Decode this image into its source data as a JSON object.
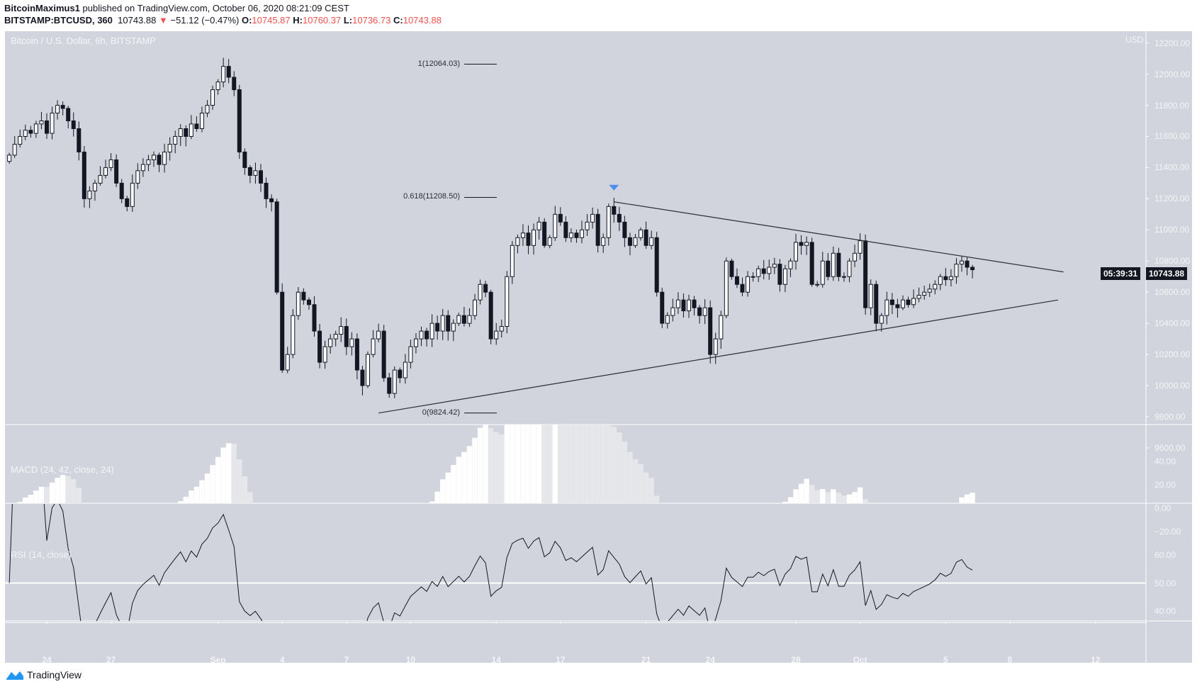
{
  "header": {
    "author": "BitcoinMaximus1",
    "published": "published on TradingView.com, October 06, 2020 08:21:09 CEST",
    "symbol": "BITSTAMP:BTCUSD, 360",
    "last": "10743.88",
    "change": "−51.12 (−0.47%)",
    "o_label": "O:",
    "o": "10745.87",
    "h_label": "H:",
    "h": "10760.37",
    "l_label": "L:",
    "l": "10736.73",
    "c_label": "C:",
    "c": "10743.88",
    "down_color": "#ef5350"
  },
  "chart": {
    "title": "Bitcoin / U.S. Dollar, 6h, BITSTAMP",
    "currency": "USD",
    "current_price": "10743.88",
    "countdown": "05:39:31",
    "background": "#d1d4dc",
    "macd_title": "MACD (24, 42, close, 24)",
    "rsi_title": "RSI (14, close)",
    "brand": "TradingView",
    "fib": [
      {
        "label": "1(12064.03)",
        "price": 12064.03
      },
      {
        "label": "0.618(11208.50)",
        "price": 11208.5
      },
      {
        "label": "0(9824.42)",
        "price": 9824.42
      }
    ],
    "marker_icon": "triangle-down-icon",
    "marker_color": "#4d8ef0"
  },
  "chart_data": {
    "type": "candlestick",
    "interval": "6h",
    "x_start": "2020-08-22T06:00",
    "closes": [
      11480,
      11550,
      11600,
      11640,
      11620,
      11680,
      11700,
      11620,
      11750,
      11800,
      11780,
      11700,
      11650,
      11500,
      11200,
      11250,
      11300,
      11350,
      11400,
      11450,
      11300,
      11200,
      11150,
      11300,
      11380,
      11420,
      11450,
      11480,
      11420,
      11500,
      11550,
      11600,
      11650,
      11600,
      11680,
      11650,
      11750,
      11800,
      11900,
      11950,
      12050,
      11980,
      11900,
      11500,
      11400,
      11350,
      11380,
      11300,
      11200,
      11180,
      10600,
      10100,
      10200,
      10450,
      10600,
      10550,
      10520,
      10350,
      10150,
      10250,
      10300,
      10330,
      10380,
      10250,
      10300,
      10100,
      10000,
      10200,
      10300,
      10350,
      10050,
      9950,
      10100,
      10050,
      10150,
      10250,
      10300,
      10350,
      10300,
      10400,
      10350,
      10450,
      10350,
      10400,
      10450,
      10400,
      10450,
      10550,
      10650,
      10600,
      10300,
      10350,
      10380,
      10700,
      10900,
      10950,
      10980,
      10900,
      11000,
      11050,
      10900,
      10950,
      11100,
      11050,
      10950,
      10980,
      10950,
      11000,
      11050,
      11100,
      10900,
      10950,
      11150,
      11100,
      11050,
      10950,
      10900,
      10950,
      11000,
      10900,
      10950,
      10600,
      10400,
      10450,
      10500,
      10550,
      10480,
      10550,
      10500,
      10450,
      10500,
      10200,
      10300,
      10450,
      10800,
      10700,
      10650,
      10600,
      10700,
      10700,
      10750,
      10720,
      10760,
      10780,
      10650,
      10750,
      10800,
      10920,
      10900,
      10920,
      10650,
      10650,
      10800,
      10700,
      10850,
      10700,
      10700,
      10800,
      10850,
      10930,
      10500,
      10650,
      10400,
      10450,
      10550,
      10520,
      10500,
      10550,
      10520,
      10560,
      10580,
      10600,
      10620,
      10650,
      10700,
      10680,
      10700,
      10780,
      10800,
      10760,
      10744
    ],
    "price_axis": {
      "ticks": [
        12200,
        12000,
        11800,
        11600,
        11400,
        11200,
        11000,
        10800,
        10600,
        10400,
        10200,
        10000,
        9800,
        9600
      ],
      "range": [
        9540,
        12260
      ]
    },
    "macd_axis": {
      "ticks": [
        "40.00",
        "20.00",
        "0.00",
        "−20.00"
      ],
      "values": [
        40,
        20,
        0,
        -20
      ]
    },
    "rsi_axis": {
      "ticks": [
        "60.00",
        "50.00",
        "40.00"
      ],
      "values": [
        60,
        50,
        40
      ]
    },
    "time_ticks": [
      {
        "label": "24",
        "date": "2020-08-24"
      },
      {
        "label": "27",
        "date": "2020-08-27"
      },
      {
        "label": "Sep",
        "date": "2020-09-01"
      },
      {
        "label": "4",
        "date": "2020-09-04"
      },
      {
        "label": "7",
        "date": "2020-09-07"
      },
      {
        "label": "10",
        "date": "2020-09-10"
      },
      {
        "label": "14",
        "date": "2020-09-14"
      },
      {
        "label": "17",
        "date": "2020-09-17"
      },
      {
        "label": "21",
        "date": "2020-09-21"
      },
      {
        "label": "24",
        "date": "2020-09-24"
      },
      {
        "label": "28",
        "date": "2020-09-28"
      },
      {
        "label": "Oct",
        "date": "2020-10-01"
      },
      {
        "label": "5",
        "date": "2020-10-05"
      },
      {
        "label": "8",
        "date": "2020-10-08"
      },
      {
        "label": "12",
        "date": "2020-10-12"
      }
    ],
    "trendlines": [
      {
        "name": "upper",
        "from": {
          "date": "2020-09-19T12:00",
          "price": 11180
        },
        "to": {
          "date": "2020-10-10T12:00",
          "price": 10730
        }
      },
      {
        "name": "lower",
        "from": {
          "date": "2020-09-08T12:00",
          "price": 9824
        },
        "to": {
          "date": "2020-10-10T06:00",
          "price": 10550
        }
      }
    ]
  }
}
